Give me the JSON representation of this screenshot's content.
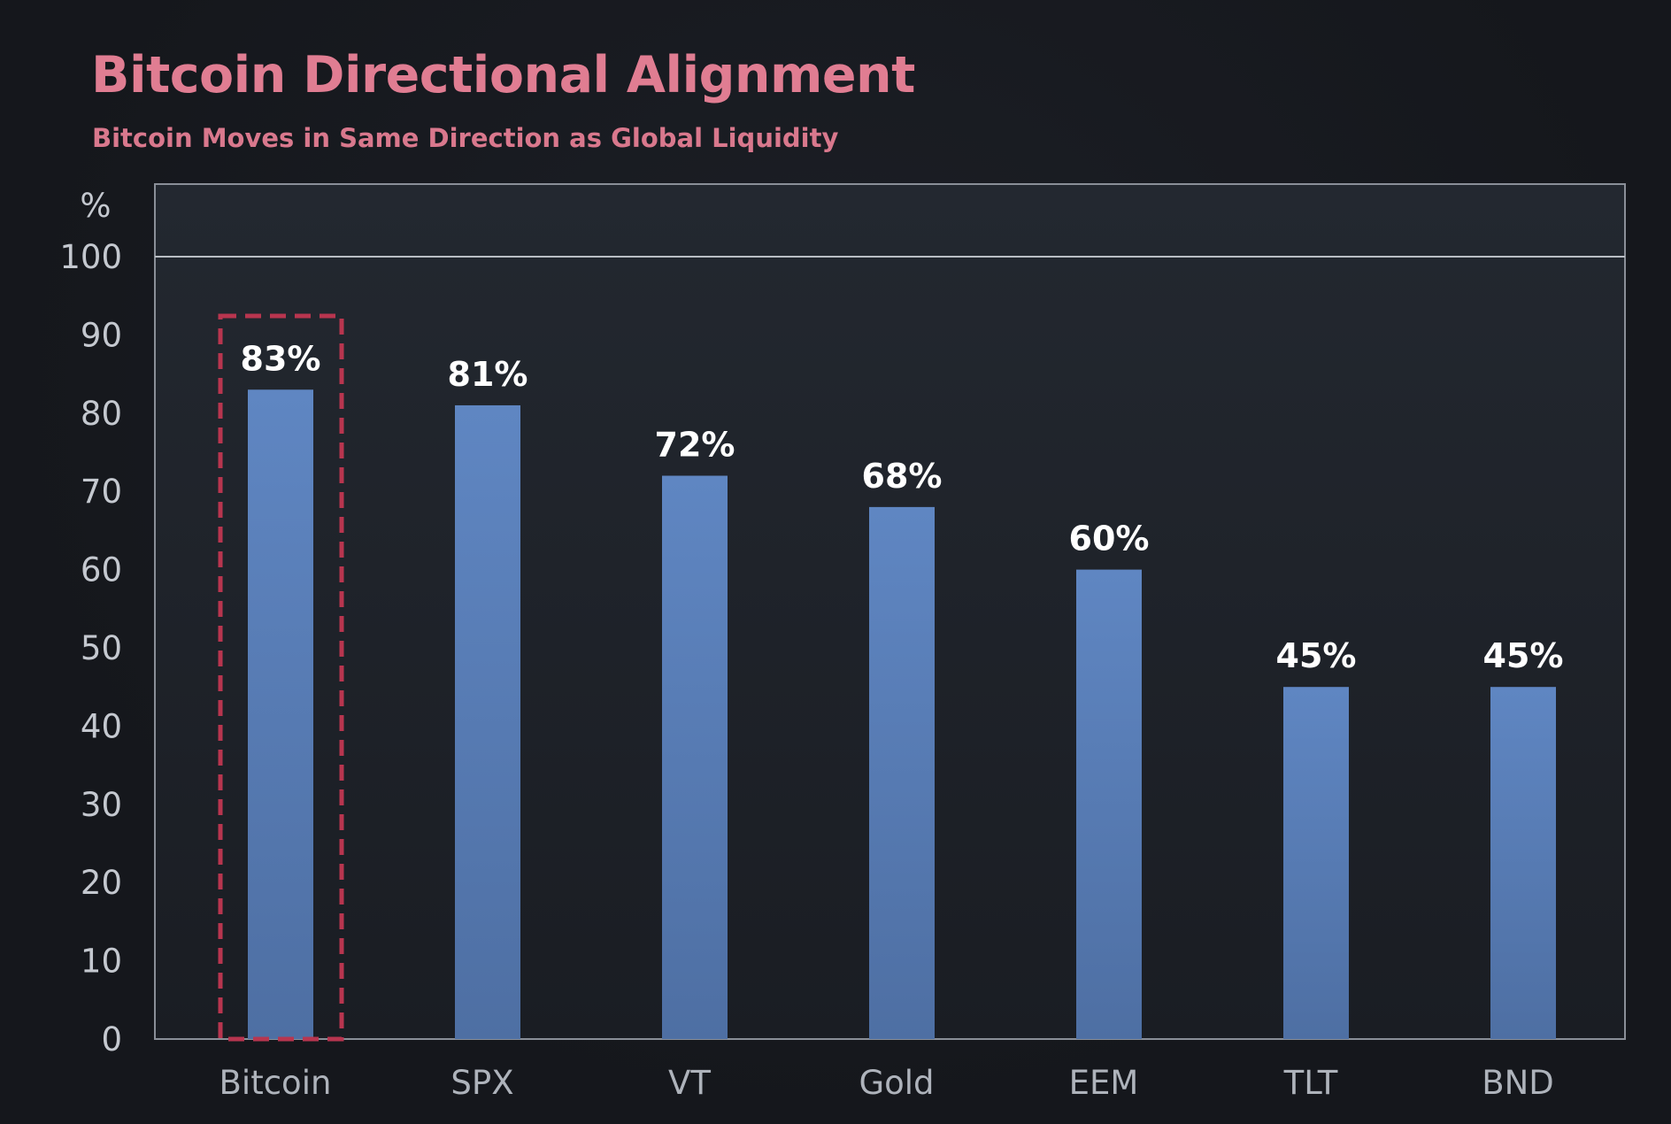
{
  "chart_data": {
    "type": "bar",
    "title": "Bitcoin Directional Alignment",
    "subtitle": "Bitcoin Moves in Same Direction as Global Liquidity",
    "ylabel": "%",
    "xlabel": "",
    "ylim": [
      0,
      100
    ],
    "yticks": [
      0,
      10,
      20,
      30,
      40,
      50,
      60,
      70,
      80,
      90,
      100
    ],
    "categories": [
      "Bitcoin",
      "SPX",
      "VT",
      "Gold",
      "EEM",
      "TLT",
      "BND"
    ],
    "values": [
      83,
      81,
      72,
      68,
      60,
      45,
      45
    ],
    "data_labels": [
      "83%",
      "81%",
      "72%",
      "68%",
      "60%",
      "45%",
      "45%"
    ],
    "highlighted_category": "Bitcoin",
    "grid": false,
    "legend": "none",
    "colors": {
      "bar": "#5b80b9",
      "bar_top": "#5f86c2",
      "highlight_outline": "#b8354f",
      "title": "#e07d92",
      "subtitle": "#d9788d",
      "plot_background": "#232830",
      "page_background": "#15171c",
      "frame": "#8a8f98"
    }
  }
}
